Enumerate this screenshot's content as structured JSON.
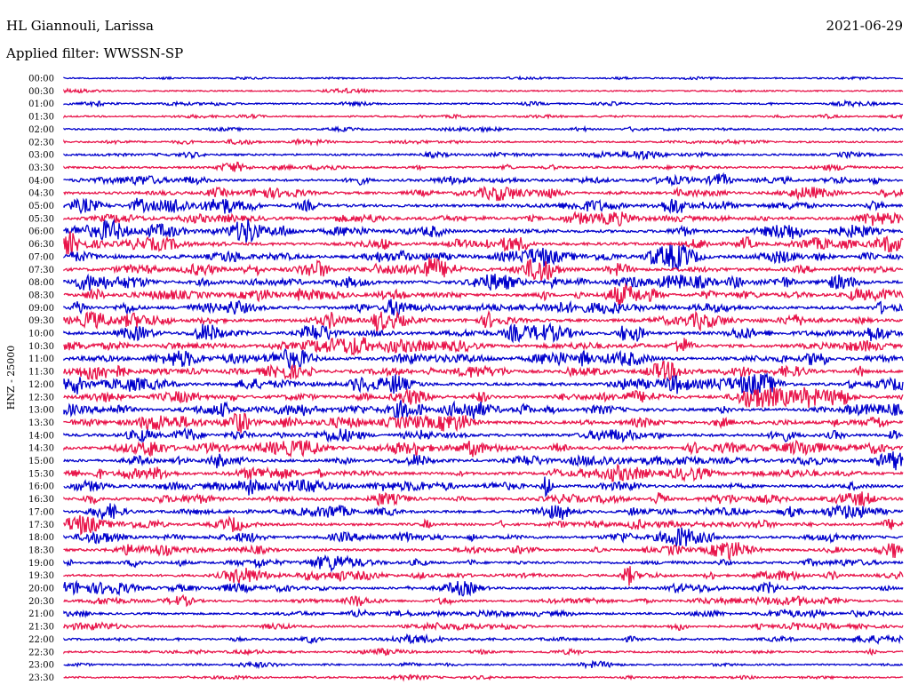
{
  "header": {
    "station": "HL Giannouli, Larissa",
    "date": "2021-06-29",
    "filter": "Applied filter: WWSSN-SP"
  },
  "chart_data": {
    "type": "line",
    "title": "HL Giannouli, Larissa",
    "ylabel": "HNZ - 25000",
    "row_labels": [
      "00:00",
      "00:30",
      "01:00",
      "01:30",
      "02:00",
      "02:30",
      "03:00",
      "03:30",
      "04:00",
      "04:30",
      "05:00",
      "05:30",
      "06:00",
      "06:30",
      "07:00",
      "07:30",
      "08:00",
      "08:30",
      "09:00",
      "09:30",
      "10:00",
      "10:30",
      "11:00",
      "11:30",
      "12:00",
      "12:30",
      "13:00",
      "13:30",
      "14:00",
      "14:30",
      "15:00",
      "15:30",
      "16:00",
      "16:30",
      "17:00",
      "17:30",
      "18:00",
      "18:30",
      "19:00",
      "19:30",
      "20:00",
      "20:30",
      "21:00",
      "21:30",
      "22:00",
      "22:30",
      "23:00",
      "23:30"
    ],
    "row_colors": [
      "#0000cc",
      "#e8144a"
    ],
    "activity_level": [
      0.2,
      0.2,
      0.3,
      0.3,
      0.35,
      0.4,
      0.5,
      0.55,
      0.7,
      0.8,
      0.9,
      0.9,
      0.95,
      1.0,
      1.0,
      1.0,
      1.0,
      1.0,
      1.0,
      1.0,
      1.0,
      1.0,
      1.0,
      1.0,
      1.0,
      1.0,
      1.0,
      1.0,
      0.95,
      0.95,
      0.9,
      0.9,
      0.9,
      0.85,
      0.8,
      0.8,
      0.8,
      0.75,
      0.75,
      0.7,
      0.7,
      0.65,
      0.6,
      0.6,
      0.55,
      0.45,
      0.35,
      0.3
    ]
  }
}
